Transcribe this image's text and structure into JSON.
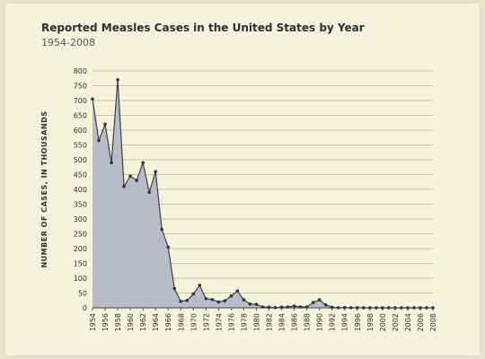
{
  "chart_data": {
    "type": "area",
    "title": "Reported Measles Cases in the United States by Year",
    "subtitle": "1954-2008",
    "ylabel": "NUMBER OF CASES, IN THOUSANDS",
    "xlabel": "",
    "ylim": [
      0,
      800
    ],
    "yticks": [
      0,
      50,
      100,
      150,
      200,
      250,
      300,
      350,
      400,
      450,
      500,
      550,
      600,
      650,
      700,
      750,
      800
    ],
    "xlim": [
      1954,
      2008
    ],
    "xticks": [
      1954,
      1956,
      1958,
      1960,
      1962,
      1964,
      1966,
      1968,
      1970,
      1972,
      1974,
      1976,
      1978,
      1980,
      1982,
      1984,
      1986,
      1988,
      1990,
      1992,
      1994,
      1996,
      1998,
      2000,
      2002,
      2004,
      2006,
      2008
    ],
    "grid": "horizontal",
    "x": [
      1954,
      1955,
      1956,
      1957,
      1958,
      1959,
      1960,
      1961,
      1962,
      1963,
      1964,
      1965,
      1966,
      1967,
      1968,
      1969,
      1970,
      1971,
      1972,
      1973,
      1974,
      1975,
      1976,
      1977,
      1978,
      1979,
      1980,
      1981,
      1982,
      1983,
      1984,
      1985,
      1986,
      1987,
      1988,
      1989,
      1990,
      1991,
      1992,
      1993,
      1994,
      1995,
      1996,
      1997,
      1998,
      1999,
      2000,
      2001,
      2002,
      2003,
      2004,
      2005,
      2006,
      2007,
      2008
    ],
    "values": [
      705,
      565,
      620,
      490,
      770,
      410,
      445,
      430,
      490,
      390,
      460,
      265,
      205,
      65,
      22,
      25,
      47,
      76,
      31,
      28,
      20,
      24,
      40,
      57,
      27,
      13,
      12,
      3,
      2,
      1,
      2,
      3,
      6,
      3,
      3,
      18,
      27,
      10,
      2,
      0.3,
      1,
      0.3,
      0.5,
      0.1,
      0.1,
      0.1,
      0.1,
      0.1,
      0.04,
      0.06,
      0.04,
      0.07,
      0.06,
      0.04,
      0.14
    ],
    "colors": {
      "area": "#b8bcc7",
      "line": "#3c414f",
      "marker": "#2f3443",
      "grid": "#c9c6a6",
      "text": "#2e2e2e"
    }
  }
}
